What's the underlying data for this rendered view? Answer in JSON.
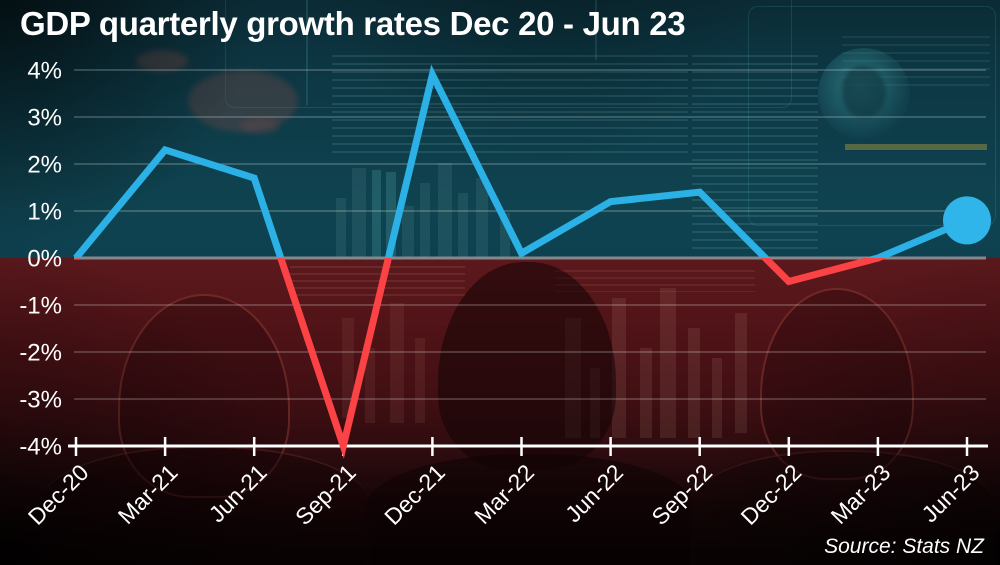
{
  "title": "GDP quarterly growth rates Dec 20 - Jun 23",
  "source": "Source: Stats NZ",
  "colors": {
    "positive_line": "#2bb1e6",
    "negative_line": "#fb4345",
    "endpoint_dot": "#2fb5e9",
    "axis": "#ffffff",
    "zero_line": "#85888b",
    "grid": "rgba(255,255,255,0.30)",
    "background_top": "#0e3c49",
    "background_bottom": "#4c1317",
    "text": "#ffffff"
  },
  "chart_data": {
    "type": "line",
    "title": "GDP quarterly growth rates Dec 20 - Jun 23",
    "categories": [
      "Dec-20",
      "Mar-21",
      "Jun-21",
      "Sep-21",
      "Dec-21",
      "Mar-22",
      "Jun-22",
      "Sep-22",
      "Dec-22",
      "Mar-23",
      "Jun-23"
    ],
    "values": [
      0.0,
      2.3,
      1.7,
      -4.0,
      3.9,
      0.1,
      1.2,
      1.4,
      -0.5,
      0.0,
      0.8
    ],
    "xlabel": "",
    "ylabel": "",
    "ylim": [
      -4,
      4
    ],
    "ytick_step": 1,
    "ytick_labels": [
      "4%",
      "3%",
      "2%",
      "1%",
      "0%",
      "-1%",
      "-2%",
      "-3%",
      "-4%"
    ],
    "grid": true,
    "legend": "none",
    "style_notes": {
      "line_above_zero": "blue",
      "line_below_zero": "red",
      "endpoint_marker": "large blue circle on last point",
      "x_labels_rotated_degrees": -45
    }
  }
}
